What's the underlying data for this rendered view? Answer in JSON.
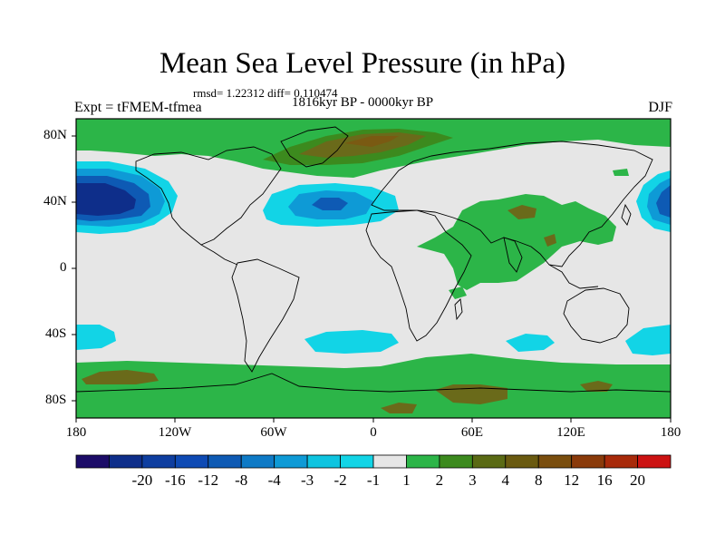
{
  "figure": {
    "title": "Mean Sea Level Pressure (in hPa)",
    "stats": "rmsd= 1.22312 diff= 0.110474",
    "period": "1816kyr BP - 0000kyr BP",
    "experiment": "Expt = tFMEM-tfmea",
    "season": "DJF"
  },
  "map": {
    "lat_labels": [
      "80N",
      "40N",
      "0",
      "40S",
      "80S"
    ],
    "lon_labels": [
      "180",
      "120W",
      "60W",
      "0",
      "60E",
      "120E",
      "180"
    ],
    "region_colors": {
      "background": "#e6e6e6",
      "green1": "#2cb548",
      "green2": "#3c8a1e",
      "brown1": "#6a6a1a",
      "brown2": "#7a5a12",
      "blue_light": "#12d4e6",
      "blue_mid": "#0e9ad6",
      "blue_deep": "#0e5ab4",
      "blue_darkest": "#0e2e8a"
    }
  },
  "colorbar": {
    "labels": [
      "-20",
      "-16",
      "-12",
      "-8",
      "-4",
      "-3",
      "-2",
      "-1",
      "1",
      "2",
      "3",
      "4",
      "8",
      "12",
      "16",
      "20"
    ],
    "colors": [
      "#1c0c68",
      "#0e2e8a",
      "#0e3ea0",
      "#0e4ab4",
      "#0e5ab4",
      "#0e7ac6",
      "#0e9ad6",
      "#0ec4e0",
      "#12d4e6",
      "#e6e6e6",
      "#2cb548",
      "#3c8a1e",
      "#5a6a14",
      "#6a5a10",
      "#7a4e0e",
      "#8a3a0a",
      "#a82a0a",
      "#cc1212"
    ]
  }
}
